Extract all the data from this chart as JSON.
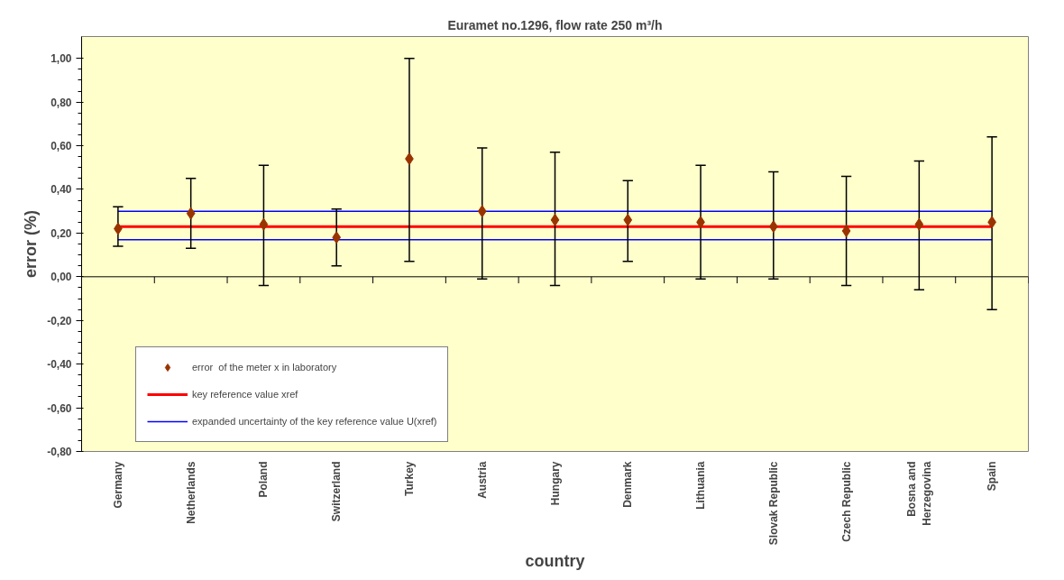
{
  "chart_data": {
    "type": "scatter",
    "title": "Euramet no.1296, flow rate 250 m³/h",
    "xlabel": "country",
    "ylabel": "error (%)",
    "categories": [
      "Germany",
      "Netherlands",
      "Poland",
      "Switzerland",
      "Turkey",
      "Austria",
      "Hungary",
      "Denmark",
      "Lithuania",
      "Slovak Republic",
      "Czech Republic",
      "Bosna and Herzegovina",
      "Spain"
    ],
    "series": [
      {
        "name": "error  of the meter x in laboratory",
        "color": "#993300",
        "marker": "diamond",
        "values": [
          0.22,
          0.29,
          0.24,
          0.18,
          0.54,
          0.3,
          0.26,
          0.26,
          0.25,
          0.23,
          0.21,
          0.24,
          0.25
        ],
        "errors": [
          [
            0.14,
            0.32
          ],
          [
            0.13,
            0.45
          ],
          [
            -0.04,
            0.51
          ],
          [
            0.05,
            0.31
          ],
          [
            0.07,
            1.0
          ],
          [
            -0.01,
            0.59
          ],
          [
            -0.04,
            0.57
          ],
          [
            0.07,
            0.44
          ],
          [
            -0.01,
            0.51
          ],
          [
            -0.01,
            0.48
          ],
          [
            -0.04,
            0.46
          ],
          [
            -0.06,
            0.53
          ],
          [
            -0.15,
            0.64
          ]
        ]
      },
      {
        "name": "key reference value xref",
        "type": "line",
        "color": "#ff0000",
        "values": [
          0.23,
          0.23,
          0.23,
          0.23,
          0.23,
          0.23,
          0.23,
          0.23,
          0.23,
          0.23,
          0.23,
          0.23,
          0.23
        ]
      },
      {
        "name": "expanded uncertainty of the key reference value U(xref)",
        "type": "line",
        "color": "#0000ff",
        "values": [
          0.3,
          0.3,
          0.3,
          0.3,
          0.3,
          0.3,
          0.3,
          0.3,
          0.3,
          0.3,
          0.3,
          0.3,
          0.3
        ]
      },
      {
        "type": "line",
        "color": "#0000ff",
        "values": [
          0.17,
          0.17,
          0.17,
          0.17,
          0.17,
          0.17,
          0.17,
          0.17,
          0.17,
          0.17,
          0.17,
          0.17,
          0.17
        ]
      }
    ],
    "ylim": [
      -0.8,
      1.1
    ],
    "yticks": [
      {
        "value": -0.8,
        "label": "-0,80"
      },
      {
        "value": -0.6,
        "label": "-0,60"
      },
      {
        "value": -0.4,
        "label": "-0,40"
      },
      {
        "value": -0.2,
        "label": "-0,20"
      },
      {
        "value": 0,
        "label": "0,00"
      },
      {
        "value": 0.2,
        "label": "0,20"
      },
      {
        "value": 0.4,
        "label": "0,40"
      },
      {
        "value": 0.6,
        "label": "0,60"
      },
      {
        "value": 0.8,
        "label": "0,80"
      },
      {
        "value": 1.0,
        "label": "1,00"
      }
    ],
    "ref_lines": [
      {
        "axis": "y",
        "value": 0,
        "color": "#000000"
      }
    ],
    "legend": "bottom left"
  }
}
